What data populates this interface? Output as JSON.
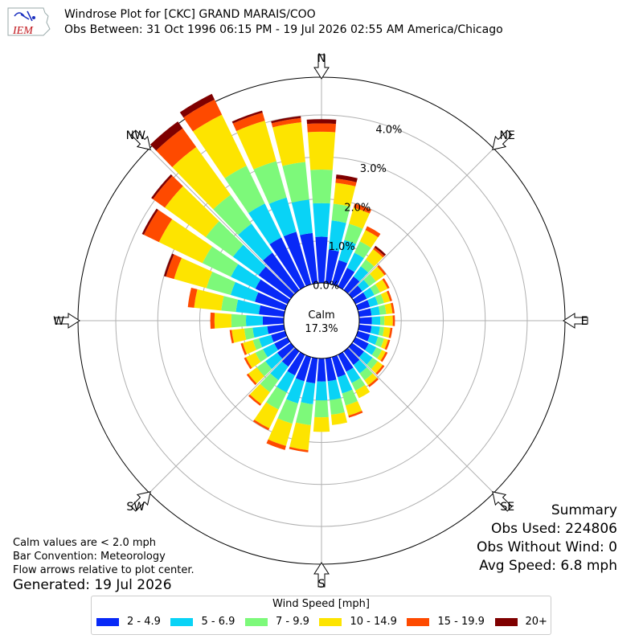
{
  "header": {
    "logo_text": "IEM",
    "title": "Windrose Plot for [CKC] GRAND MARAIS/COO",
    "subtitle": "Obs Between: 31 Oct 1996 06:15 PM - 19 Jul 2026 02:55 AM America/Chicago"
  },
  "notes": {
    "calm_def": "Calm values are < 2.0 mph",
    "convention": "Bar Convention: Meteorology",
    "arrows": "Flow arrows relative to plot center.",
    "generated": "Generated: 19 Jul 2026"
  },
  "summary": {
    "heading": "Summary",
    "obs_used": "Obs Used: 224806",
    "obs_without_wind": "Obs Without Wind: 0",
    "avg_speed": "Avg Speed: 6.8 mph"
  },
  "chart_data": {
    "type": "windrose",
    "calm_label": "Calm",
    "calm_value": "17.3%",
    "directions": [
      "N",
      "NE",
      "E",
      "SE",
      "S",
      "SW",
      "W",
      "NW"
    ],
    "radial_ticks": [
      "0.0%",
      "1.0%",
      "2.0%",
      "3.0%",
      "4.0%"
    ],
    "radial_max_pct": 4.9,
    "legend_title": "Wind Speed [mph]",
    "bins": [
      {
        "label": "2 - 4.9",
        "color": "#0829f7"
      },
      {
        "label": "5 - 6.9",
        "color": "#09d3f6"
      },
      {
        "label": "7 - 9.9",
        "color": "#7df97a"
      },
      {
        "label": "10 - 14.9",
        "color": "#fde400"
      },
      {
        "label": "15 - 19.9",
        "color": "#fe4a00"
      },
      {
        "label": "20+",
        "color": "#7f0000"
      }
    ],
    "sector_degrees": [
      0,
      10,
      20,
      30,
      40,
      50,
      60,
      70,
      80,
      90,
      100,
      110,
      120,
      130,
      140,
      150,
      160,
      170,
      180,
      190,
      200,
      210,
      220,
      230,
      240,
      250,
      260,
      270,
      280,
      290,
      300,
      310,
      320,
      330,
      340,
      350
    ],
    "cumulative_pct": [
      [
        1.1,
        1.9,
        2.7,
        3.6,
        3.8,
        3.9
      ],
      [
        0.8,
        1.5,
        1.9,
        2.4,
        2.5,
        2.6
      ],
      [
        0.6,
        1.1,
        1.5,
        1.9,
        2.0,
        2.0
      ],
      [
        0.5,
        0.9,
        1.2,
        1.5,
        1.6,
        1.6
      ],
      [
        0.4,
        0.7,
        0.9,
        1.2,
        1.25,
        1.3
      ],
      [
        0.3,
        0.5,
        0.7,
        0.95,
        1.0,
        1.0
      ],
      [
        0.3,
        0.5,
        0.65,
        0.85,
        0.9,
        0.9
      ],
      [
        0.3,
        0.5,
        0.65,
        0.8,
        0.85,
        0.85
      ],
      [
        0.3,
        0.5,
        0.65,
        0.8,
        0.85,
        0.85
      ],
      [
        0.3,
        0.5,
        0.6,
        0.8,
        0.85,
        0.85
      ],
      [
        0.3,
        0.5,
        0.6,
        0.75,
        0.8,
        0.8
      ],
      [
        0.3,
        0.5,
        0.65,
        0.75,
        0.8,
        0.8
      ],
      [
        0.35,
        0.55,
        0.7,
        0.8,
        0.85,
        0.85
      ],
      [
        0.35,
        0.6,
        0.75,
        0.9,
        0.95,
        0.95
      ],
      [
        0.4,
        0.65,
        0.85,
        1.0,
        1.05,
        1.05
      ],
      [
        0.45,
        0.75,
        0.95,
        1.15,
        1.15,
        1.15
      ],
      [
        0.5,
        0.9,
        1.2,
        1.45,
        1.5,
        1.5
      ],
      [
        0.55,
        1.0,
        1.35,
        1.6,
        1.6,
        1.6
      ],
      [
        0.55,
        1.0,
        1.4,
        1.75,
        1.75,
        1.75
      ],
      [
        0.6,
        1.1,
        1.6,
        2.2,
        2.25,
        2.25
      ],
      [
        0.6,
        1.15,
        1.65,
        2.2,
        2.3,
        2.3
      ],
      [
        0.55,
        1.0,
        1.45,
        1.95,
        2.0,
        2.0
      ],
      [
        0.45,
        0.85,
        1.2,
        1.55,
        1.6,
        1.6
      ],
      [
        0.4,
        0.75,
        1.0,
        1.25,
        1.3,
        1.3
      ],
      [
        0.35,
        0.65,
        0.85,
        1.1,
        1.15,
        1.15
      ],
      [
        0.35,
        0.65,
        0.8,
        1.05,
        1.1,
        1.1
      ],
      [
        0.4,
        0.75,
        0.95,
        1.25,
        1.3,
        1.3
      ],
      [
        0.5,
        0.9,
        1.25,
        1.65,
        1.75,
        1.75
      ],
      [
        0.6,
        1.15,
        1.5,
        2.15,
        2.3,
        2.3
      ],
      [
        0.75,
        1.35,
        1.95,
        2.75,
        2.95,
        3.0
      ],
      [
        0.85,
        1.5,
        2.25,
        3.4,
        3.8,
        3.85
      ],
      [
        0.95,
        1.7,
        2.5,
        3.7,
        4.05,
        4.1
      ],
      [
        1.1,
        1.95,
        2.8,
        4.2,
        4.75,
        4.95
      ],
      [
        1.3,
        2.2,
        3.2,
        4.55,
        4.95,
        5.1
      ],
      [
        1.3,
        2.15,
        3.05,
        4.05,
        4.25,
        4.3
      ],
      [
        1.2,
        2.0,
        2.9,
        3.85,
        3.95,
        4.0
      ]
    ]
  }
}
